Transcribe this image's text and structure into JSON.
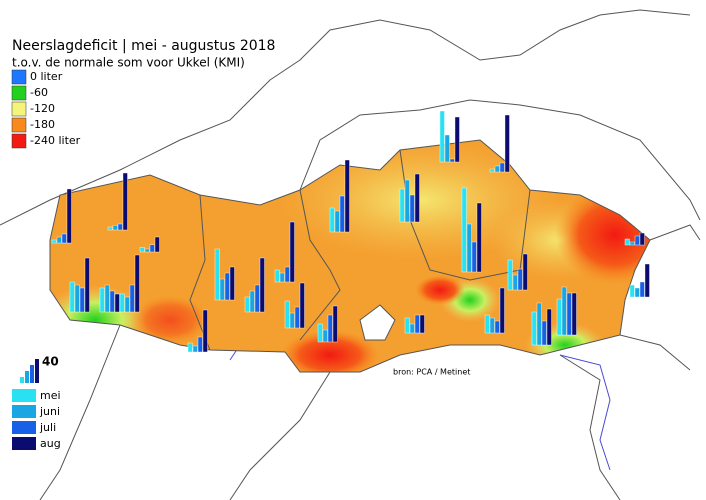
{
  "title": "Neerslagdeficit | mei - augustus 2018",
  "subtitle": "t.o.v. de normale som voor Ukkel (KMI)",
  "deficit_legend": [
    {
      "label": "0 liter",
      "color": "#1e78ff"
    },
    {
      "label": "-60",
      "color": "#22d11e"
    },
    {
      "label": "-120",
      "color": "#f4f47a"
    },
    {
      "label": "-180",
      "color": "#f88a1c"
    },
    {
      "label": "-240 liter",
      "color": "#f21a12"
    }
  ],
  "bar_legend": {
    "scale": 40,
    "series": [
      {
        "name": "mei",
        "color": "#28e2f2"
      },
      {
        "name": "juni",
        "color": "#1aa6e2"
      },
      {
        "name": "juli",
        "color": "#1860e6"
      },
      {
        "name": "aug",
        "color": "#0b0b70"
      }
    ]
  },
  "source": "bron: PCA / Metinet",
  "stations": [
    [
      5,
      10,
      15,
      90
    ],
    [
      5,
      8,
      10,
      95
    ],
    [
      8,
      5,
      12,
      25
    ],
    [
      50,
      45,
      40,
      90
    ],
    [
      40,
      45,
      35,
      30
    ],
    [
      30,
      25,
      45,
      95
    ],
    [
      15,
      10,
      25,
      70
    ],
    [
      85,
      35,
      45,
      55
    ],
    [
      25,
      35,
      45,
      90
    ],
    [
      20,
      15,
      25,
      100
    ],
    [
      45,
      25,
      35,
      75
    ],
    [
      30,
      20,
      45,
      60
    ],
    [
      40,
      35,
      60,
      120
    ],
    [
      55,
      70,
      45,
      80
    ],
    [
      25,
      15,
      30,
      30
    ],
    [
      85,
      45,
      5,
      75
    ],
    [
      5,
      10,
      15,
      95
    ],
    [
      140,
      80,
      50,
      115
    ],
    [
      30,
      25,
      20,
      75
    ],
    [
      50,
      25,
      35,
      60
    ],
    [
      55,
      70,
      40,
      60
    ],
    [
      60,
      80,
      70,
      70
    ],
    [
      10,
      5,
      15,
      20
    ],
    [
      20,
      15,
      25,
      55
    ]
  ]
}
